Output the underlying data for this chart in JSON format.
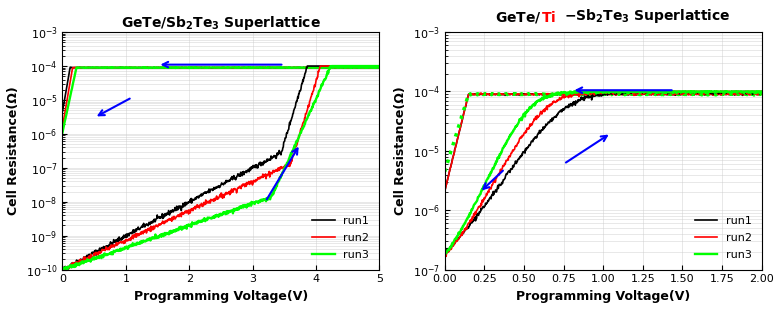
{
  "xlabel": "Programming Voltage(V)",
  "ylabel": "Cell Resistance(Ω)",
  "left_xlim": [
    0,
    5
  ],
  "left_ylim": [
    1e-10,
    0.001
  ],
  "right_xlim": [
    0,
    2.0
  ],
  "right_ylim": [
    1e-07,
    0.001
  ],
  "run_colors": [
    "black",
    "red",
    "lime"
  ],
  "run_labels": [
    "run1",
    "run2",
    "run3"
  ],
  "arrow_color": "blue",
  "grid_color": "#cccccc",
  "title_fontsize": 10,
  "label_fontsize": 9,
  "tick_fontsize": 8,
  "legend_fontsize": 8
}
